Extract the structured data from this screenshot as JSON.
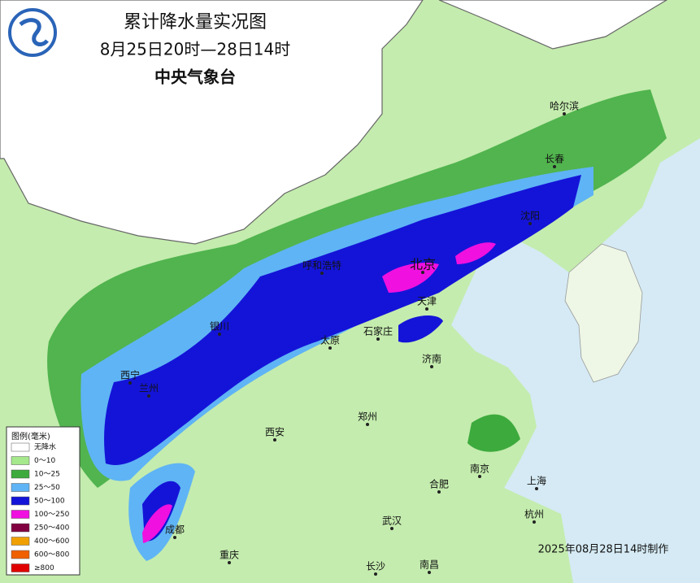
{
  "header": {
    "title": "累计降水量实况图",
    "subtitle": "8月25日20时—28日14时",
    "agency": "中央气象台"
  },
  "legend": {
    "title": "图例(毫米)",
    "items": [
      {
        "label": "无降水",
        "color": "#ffffff"
      },
      {
        "label": "0～10",
        "color": "#a6e88c"
      },
      {
        "label": "10～25",
        "color": "#3daa3d"
      },
      {
        "label": "25～50",
        "color": "#5fb4f5"
      },
      {
        "label": "50～100",
        "color": "#1414d8"
      },
      {
        "label": "100～250",
        "color": "#f010e0"
      },
      {
        "label": "250～400",
        "color": "#800040"
      },
      {
        "label": "400～600",
        "color": "#f0a000"
      },
      {
        "label": "600～800",
        "color": "#f06000"
      },
      {
        "label": "≥800",
        "color": "#e00000"
      }
    ]
  },
  "cities": [
    "哈尔滨",
    "长春",
    "沈阳",
    "北京",
    "天津",
    "呼和浩特",
    "石家庄",
    "太原",
    "济南",
    "银川",
    "西宁",
    "兰州",
    "西安",
    "郑州",
    "南京",
    "上海",
    "合肥",
    "杭州",
    "武汉",
    "成都",
    "重庆",
    "长沙",
    "南昌"
  ],
  "footer": "2025年08月28日14时制作"
}
